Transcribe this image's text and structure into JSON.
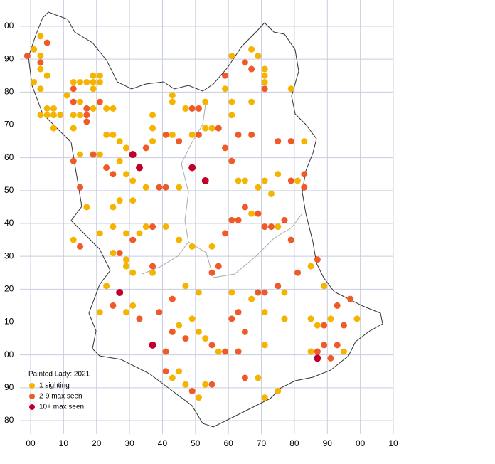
{
  "map": {
    "xlim": [
      0,
      110
    ],
    "ylim": [
      -20,
      100
    ],
    "xticks": [
      {
        "value": 0,
        "label": "00"
      },
      10,
      20,
      30,
      40,
      50,
      60,
      70,
      80,
      90,
      {
        "value": 100,
        "label": "00"
      },
      {
        "value": 110,
        "label": "10"
      }
    ],
    "yticks": [
      {
        "value": 100,
        "label": "00"
      },
      90,
      80,
      70,
      60,
      50,
      40,
      30,
      20,
      10,
      {
        "value": 0,
        "label": "00"
      },
      {
        "value": -10,
        "label": "90"
      },
      {
        "value": -20,
        "label": "80"
      }
    ],
    "legend": {
      "title": "Painted Lady:  2021",
      "levels": [
        {
          "name": "1 sighting",
          "color": "#f5b400"
        },
        {
          "name": "2-9 max seen",
          "color": "#f05a28"
        },
        {
          "name": "10+ max seen",
          "color": "#c0002a"
        }
      ]
    },
    "points": [
      [
        -1,
        91,
        1
      ],
      [
        1,
        93,
        0
      ],
      [
        3,
        97,
        0
      ],
      [
        5,
        95,
        1
      ],
      [
        3,
        91,
        0
      ],
      [
        3,
        89,
        1
      ],
      [
        3,
        87,
        0
      ],
      [
        5,
        85,
        0
      ],
      [
        1,
        83,
        0
      ],
      [
        3,
        81,
        0
      ],
      [
        3,
        73,
        0
      ],
      [
        5,
        73,
        0
      ],
      [
        7,
        73,
        0
      ],
      [
        9,
        73,
        0
      ],
      [
        7,
        69,
        0
      ],
      [
        5,
        75,
        0
      ],
      [
        7,
        75,
        0
      ],
      [
        11,
        79,
        0
      ],
      [
        13,
        81,
        1
      ],
      [
        13,
        83,
        0
      ],
      [
        15,
        83,
        0
      ],
      [
        17,
        83,
        0
      ],
      [
        19,
        85,
        0
      ],
      [
        21,
        85,
        0
      ],
      [
        19,
        83,
        0
      ],
      [
        21,
        83,
        0
      ],
      [
        19,
        81,
        0
      ],
      [
        13,
        77,
        1
      ],
      [
        15,
        77,
        0
      ],
      [
        17,
        75,
        1
      ],
      [
        17,
        73,
        1
      ],
      [
        15,
        73,
        0
      ],
      [
        13,
        73,
        0
      ],
      [
        13,
        69,
        0
      ],
      [
        17,
        71,
        1
      ],
      [
        19,
        75,
        0
      ],
      [
        21,
        77,
        1
      ],
      [
        23,
        75,
        0
      ],
      [
        25,
        75,
        0
      ],
      [
        23,
        67,
        0
      ],
      [
        25,
        67,
        0
      ],
      [
        21,
        61,
        0
      ],
      [
        19,
        61,
        1
      ],
      [
        15,
        61,
        0
      ],
      [
        13,
        59,
        1
      ],
      [
        15,
        51,
        1
      ],
      [
        17,
        45,
        0
      ],
      [
        13,
        35,
        0
      ],
      [
        15,
        33,
        1
      ],
      [
        27,
        65,
        0
      ],
      [
        29,
        63,
        0
      ],
      [
        31,
        61,
        2
      ],
      [
        27,
        59,
        0
      ],
      [
        23,
        57,
        1
      ],
      [
        25,
        55,
        1
      ],
      [
        29,
        55,
        0
      ],
      [
        31,
        53,
        0
      ],
      [
        33,
        57,
        2
      ],
      [
        35,
        63,
        1
      ],
      [
        37,
        73,
        0
      ],
      [
        37,
        69,
        0
      ],
      [
        37,
        65,
        0
      ],
      [
        41,
        67,
        1
      ],
      [
        43,
        67,
        0
      ],
      [
        43,
        79,
        0
      ],
      [
        43,
        77,
        0
      ],
      [
        47,
        75,
        0
      ],
      [
        49,
        75,
        1
      ],
      [
        51,
        75,
        1
      ],
      [
        53,
        77,
        0
      ],
      [
        45,
        65,
        1
      ],
      [
        49,
        67,
        0
      ],
      [
        51,
        67,
        1
      ],
      [
        53,
        69,
        0
      ],
      [
        55,
        69,
        0
      ],
      [
        57,
        69,
        1
      ],
      [
        61,
        77,
        0
      ],
      [
        61,
        73,
        0
      ],
      [
        59,
        81,
        0
      ],
      [
        61,
        91,
        0
      ],
      [
        59,
        85,
        1
      ],
      [
        65,
        89,
        1
      ],
      [
        67,
        87,
        1
      ],
      [
        67,
        93,
        0
      ],
      [
        69,
        91,
        0
      ],
      [
        71,
        87,
        0
      ],
      [
        71,
        85,
        0
      ],
      [
        71,
        83,
        0
      ],
      [
        71,
        81,
        1
      ],
      [
        67,
        77,
        0
      ],
      [
        63,
        67,
        1
      ],
      [
        67,
        67,
        1
      ],
      [
        61,
        59,
        1
      ],
      [
        63,
        53,
        0
      ],
      [
        59,
        63,
        1
      ],
      [
        53,
        53,
        2
      ],
      [
        49,
        57,
        2
      ],
      [
        45,
        51,
        0
      ],
      [
        41,
        51,
        1
      ],
      [
        39,
        51,
        1
      ],
      [
        35,
        51,
        0
      ],
      [
        31,
        47,
        0
      ],
      [
        27,
        47,
        0
      ],
      [
        25,
        45,
        0
      ],
      [
        25,
        39,
        0
      ],
      [
        29,
        37,
        0
      ],
      [
        31,
        35,
        1
      ],
      [
        33,
        37,
        0
      ],
      [
        35,
        39,
        0
      ],
      [
        37,
        39,
        1
      ],
      [
        41,
        39,
        0
      ],
      [
        45,
        35,
        0
      ],
      [
        49,
        33,
        0
      ],
      [
        55,
        33,
        0
      ],
      [
        59,
        37,
        1
      ],
      [
        61,
        41,
        1
      ],
      [
        63,
        41,
        1
      ],
      [
        65,
        45,
        1
      ],
      [
        67,
        43,
        0
      ],
      [
        69,
        43,
        1
      ],
      [
        71,
        39,
        1
      ],
      [
        73,
        39,
        1
      ],
      [
        75,
        39,
        0
      ],
      [
        77,
        41,
        1
      ],
      [
        79,
        35,
        1
      ],
      [
        75,
        55,
        0
      ],
      [
        79,
        53,
        1
      ],
      [
        81,
        53,
        0
      ],
      [
        83,
        55,
        1
      ],
      [
        83,
        51,
        1
      ],
      [
        75,
        65,
        1
      ],
      [
        79,
        65,
        1
      ],
      [
        83,
        65,
        0
      ],
      [
        79,
        81,
        0
      ],
      [
        69,
        51,
        0
      ],
      [
        71,
        53,
        0
      ],
      [
        73,
        49,
        0
      ],
      [
        65,
        53,
        0
      ],
      [
        21,
        37,
        0
      ],
      [
        25,
        31,
        0
      ],
      [
        27,
        31,
        1
      ],
      [
        29,
        29,
        0
      ],
      [
        31,
        25,
        0
      ],
      [
        29,
        27,
        0
      ],
      [
        27,
        19,
        2
      ],
      [
        23,
        21,
        0
      ],
      [
        21,
        13,
        0
      ],
      [
        25,
        15,
        1
      ],
      [
        31,
        15,
        0
      ],
      [
        29,
        13,
        0
      ],
      [
        33,
        11,
        1
      ],
      [
        37,
        27,
        1
      ],
      [
        37,
        25,
        0
      ],
      [
        39,
        13,
        1
      ],
      [
        43,
        17,
        1
      ],
      [
        47,
        21,
        0
      ],
      [
        51,
        19,
        0
      ],
      [
        55,
        25,
        1
      ],
      [
        57,
        27,
        1
      ],
      [
        61,
        19,
        0
      ],
      [
        67,
        17,
        0
      ],
      [
        69,
        19,
        1
      ],
      [
        71,
        19,
        1
      ],
      [
        75,
        21,
        1
      ],
      [
        77,
        19,
        0
      ],
      [
        81,
        25,
        1
      ],
      [
        85,
        27,
        0
      ],
      [
        87,
        29,
        1
      ],
      [
        89,
        21,
        0
      ],
      [
        93,
        15,
        1
      ],
      [
        97,
        17,
        1
      ],
      [
        99,
        11,
        0
      ],
      [
        95,
        9,
        1
      ],
      [
        91,
        11,
        0
      ],
      [
        85,
        11,
        0
      ],
      [
        87,
        9,
        0
      ],
      [
        89,
        9,
        1
      ],
      [
        85,
        1,
        0
      ],
      [
        87,
        1,
        1
      ],
      [
        87,
        -1,
        2
      ],
      [
        91,
        -1,
        1
      ],
      [
        93,
        3,
        1
      ],
      [
        95,
        1,
        0
      ],
      [
        89,
        3,
        1
      ],
      [
        49,
        11,
        0
      ],
      [
        51,
        7,
        0
      ],
      [
        53,
        5,
        0
      ],
      [
        55,
        3,
        1
      ],
      [
        57,
        1,
        0
      ],
      [
        59,
        1,
        1
      ],
      [
        63,
        1,
        1
      ],
      [
        61,
        11,
        1
      ],
      [
        63,
        13,
        1
      ],
      [
        65,
        7,
        1
      ],
      [
        47,
        5,
        1
      ],
      [
        45,
        9,
        0
      ],
      [
        43,
        7,
        1
      ],
      [
        37,
        3,
        2
      ],
      [
        41,
        1,
        1
      ],
      [
        41,
        -5,
        1
      ],
      [
        43,
        -7,
        0
      ],
      [
        45,
        -5,
        0
      ],
      [
        47,
        -9,
        0
      ],
      [
        49,
        -11,
        1
      ],
      [
        51,
        -13,
        0
      ],
      [
        53,
        -9,
        0
      ],
      [
        55,
        -9,
        1
      ],
      [
        65,
        -7,
        1
      ],
      [
        69,
        -7,
        0
      ],
      [
        71,
        -13,
        0
      ],
      [
        75,
        -11,
        0
      ],
      [
        71,
        3,
        0
      ],
      [
        77,
        11,
        0
      ],
      [
        71,
        13,
        0
      ]
    ]
  }
}
